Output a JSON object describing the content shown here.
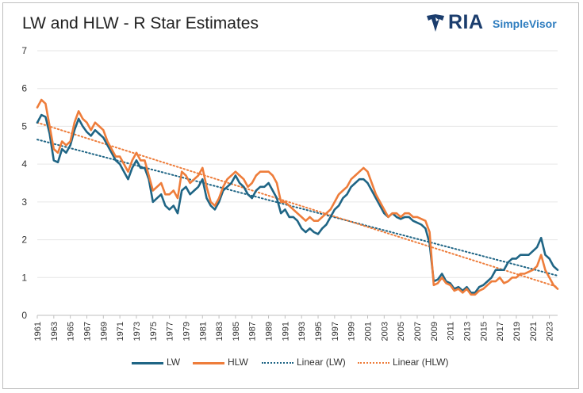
{
  "header": {
    "title": "LW and HLW - R Star Estimates",
    "logo_main": "RIA",
    "logo_sub": "SimpleVisor"
  },
  "colors": {
    "lw": "#1f6585",
    "hlw": "#ee7d3b",
    "linear_lw": "#1f6585",
    "linear_hlw": "#ee7d3b",
    "grid": "#e6e6e6",
    "logo_dark": "#1b3d6d",
    "logo_light": "#2e7dbf"
  },
  "legend": {
    "items": [
      {
        "label": "LW",
        "style": "solid",
        "color": "#1f6585"
      },
      {
        "label": "HLW",
        "style": "solid",
        "color": "#ee7d3b"
      },
      {
        "label": "Linear (LW)",
        "style": "dotted",
        "color": "#1f6585"
      },
      {
        "label": "Linear (HLW)",
        "style": "dotted",
        "color": "#ee7d3b"
      }
    ]
  },
  "chart_data": {
    "type": "line",
    "title": "LW and HLW - R Star Estimates",
    "xlabel": "",
    "ylabel": "",
    "xlim": [
      1961,
      2024
    ],
    "ylim": [
      0,
      7
    ],
    "yticks": [
      0,
      1,
      2,
      3,
      4,
      5,
      6,
      7
    ],
    "xticks": [
      "1961",
      "1963",
      "1965",
      "1967",
      "1969",
      "1971",
      "1973",
      "1975",
      "1977",
      "1979",
      "1981",
      "1983",
      "1985",
      "1987",
      "1989",
      "1991",
      "1993",
      "1995",
      "1997",
      "1999",
      "2001",
      "2003",
      "2005",
      "2007",
      "2009",
      "2011",
      "2013",
      "2015",
      "2017",
      "2019",
      "2021",
      "2023"
    ],
    "grid": "horizontal",
    "legend_position": "bottom",
    "series": [
      {
        "name": "LW",
        "x": [
          1961.0,
          1961.5,
          1962.0,
          1962.5,
          1963.0,
          1963.5,
          1964.0,
          1964.5,
          1965.0,
          1965.5,
          1966.0,
          1966.5,
          1967.0,
          1967.5,
          1968.0,
          1968.5,
          1969.0,
          1969.5,
          1970.0,
          1970.5,
          1971.0,
          1971.5,
          1972.0,
          1972.5,
          1973.0,
          1973.5,
          1974.0,
          1974.5,
          1975.0,
          1975.5,
          1976.0,
          1976.5,
          1977.0,
          1977.5,
          1978.0,
          1978.5,
          1979.0,
          1979.5,
          1980.0,
          1980.5,
          1981.0,
          1981.5,
          1982.0,
          1982.5,
          1983.0,
          1983.5,
          1984.0,
          1984.5,
          1985.0,
          1985.5,
          1986.0,
          1986.5,
          1987.0,
          1987.5,
          1988.0,
          1988.5,
          1989.0,
          1989.5,
          1990.0,
          1990.5,
          1991.0,
          1991.5,
          1992.0,
          1992.5,
          1993.0,
          1993.5,
          1994.0,
          1994.5,
          1995.0,
          1995.5,
          1996.0,
          1996.5,
          1997.0,
          1997.5,
          1998.0,
          1998.5,
          1999.0,
          1999.5,
          2000.0,
          2000.5,
          2001.0,
          2001.5,
          2002.0,
          2002.5,
          2003.0,
          2003.5,
          2004.0,
          2004.5,
          2005.0,
          2005.5,
          2006.0,
          2006.5,
          2007.0,
          2007.5,
          2008.0,
          2008.5,
          2009.0,
          2009.5,
          2010.0,
          2010.5,
          2011.0,
          2011.5,
          2012.0,
          2012.5,
          2013.0,
          2013.5,
          2014.0,
          2014.5,
          2015.0,
          2015.5,
          2016.0,
          2016.5,
          2017.0,
          2017.5,
          2018.0,
          2018.5,
          2019.0,
          2019.5,
          2020.0,
          2020.5,
          2021.0,
          2021.5,
          2022.0,
          2022.5,
          2023.0,
          2023.5,
          2024.0
        ],
        "values": [
          5.1,
          5.3,
          5.25,
          4.8,
          4.1,
          4.05,
          4.4,
          4.3,
          4.5,
          4.9,
          5.2,
          5.0,
          4.85,
          4.75,
          4.9,
          4.8,
          4.7,
          4.5,
          4.3,
          4.1,
          4.0,
          3.8,
          3.6,
          3.9,
          4.1,
          3.9,
          3.9,
          3.6,
          3.0,
          3.1,
          3.2,
          2.9,
          2.8,
          2.9,
          2.7,
          3.3,
          3.4,
          3.2,
          3.3,
          3.4,
          3.6,
          3.1,
          2.9,
          2.8,
          3.0,
          3.3,
          3.4,
          3.5,
          3.7,
          3.5,
          3.4,
          3.2,
          3.1,
          3.3,
          3.4,
          3.4,
          3.5,
          3.3,
          3.1,
          2.7,
          2.8,
          2.6,
          2.6,
          2.5,
          2.3,
          2.2,
          2.3,
          2.2,
          2.15,
          2.3,
          2.4,
          2.6,
          2.8,
          2.9,
          3.1,
          3.2,
          3.4,
          3.5,
          3.6,
          3.6,
          3.5,
          3.3,
          3.1,
          2.9,
          2.7,
          2.6,
          2.7,
          2.6,
          2.55,
          2.6,
          2.6,
          2.5,
          2.45,
          2.4,
          2.3,
          1.9,
          0.9,
          0.95,
          1.1,
          0.9,
          0.85,
          0.7,
          0.75,
          0.65,
          0.75,
          0.6,
          0.6,
          0.75,
          0.8,
          0.9,
          1.0,
          1.2,
          1.2,
          1.2,
          1.4,
          1.5,
          1.5,
          1.6,
          1.6,
          1.6,
          1.7,
          1.8,
          2.05,
          1.6,
          1.5,
          1.3,
          1.2
        ]
      },
      {
        "name": "HLW",
        "x": [
          1961.0,
          1961.5,
          1962.0,
          1962.5,
          1963.0,
          1963.5,
          1964.0,
          1964.5,
          1965.0,
          1965.5,
          1966.0,
          1966.5,
          1967.0,
          1967.5,
          1968.0,
          1968.5,
          1969.0,
          1969.5,
          1970.0,
          1970.5,
          1971.0,
          1971.5,
          1972.0,
          1972.5,
          1973.0,
          1973.5,
          1974.0,
          1974.5,
          1975.0,
          1975.5,
          1976.0,
          1976.5,
          1977.0,
          1977.5,
          1978.0,
          1978.5,
          1979.0,
          1979.5,
          1980.0,
          1980.5,
          1981.0,
          1981.5,
          1982.0,
          1982.5,
          1983.0,
          1983.5,
          1984.0,
          1984.5,
          1985.0,
          1985.5,
          1986.0,
          1986.5,
          1987.0,
          1987.5,
          1988.0,
          1988.5,
          1989.0,
          1989.5,
          1990.0,
          1990.5,
          1991.0,
          1991.5,
          1992.0,
          1992.5,
          1993.0,
          1993.5,
          1994.0,
          1994.5,
          1995.0,
          1995.5,
          1996.0,
          1996.5,
          1997.0,
          1997.5,
          1998.0,
          1998.5,
          1999.0,
          1999.5,
          2000.0,
          2000.5,
          2001.0,
          2001.5,
          2002.0,
          2002.5,
          2003.0,
          2003.5,
          2004.0,
          2004.5,
          2005.0,
          2005.5,
          2006.0,
          2006.5,
          2007.0,
          2007.5,
          2008.0,
          2008.5,
          2009.0,
          2009.5,
          2010.0,
          2010.5,
          2011.0,
          2011.5,
          2012.0,
          2012.5,
          2013.0,
          2013.5,
          2014.0,
          2014.5,
          2015.0,
          2015.5,
          2016.0,
          2016.5,
          2017.0,
          2017.5,
          2018.0,
          2018.5,
          2019.0,
          2019.5,
          2020.0,
          2020.5,
          2021.0,
          2021.5,
          2022.0,
          2022.5,
          2023.0,
          2023.5,
          2024.0
        ],
        "values": [
          5.5,
          5.7,
          5.6,
          5.0,
          4.4,
          4.3,
          4.6,
          4.5,
          4.6,
          5.1,
          5.4,
          5.2,
          5.1,
          4.9,
          5.1,
          5.0,
          4.9,
          4.6,
          4.4,
          4.2,
          4.2,
          4.0,
          3.8,
          4.1,
          4.3,
          4.1,
          4.1,
          3.7,
          3.3,
          3.4,
          3.5,
          3.2,
          3.2,
          3.3,
          3.1,
          3.8,
          3.7,
          3.5,
          3.6,
          3.7,
          3.9,
          3.4,
          3.0,
          2.9,
          3.1,
          3.4,
          3.6,
          3.7,
          3.8,
          3.7,
          3.6,
          3.4,
          3.5,
          3.7,
          3.8,
          3.8,
          3.8,
          3.7,
          3.5,
          3.0,
          3.0,
          2.9,
          2.8,
          2.7,
          2.6,
          2.5,
          2.6,
          2.5,
          2.5,
          2.6,
          2.7,
          2.8,
          3.0,
          3.2,
          3.3,
          3.4,
          3.6,
          3.7,
          3.8,
          3.9,
          3.8,
          3.5,
          3.2,
          3.0,
          2.8,
          2.6,
          2.7,
          2.7,
          2.6,
          2.7,
          2.7,
          2.6,
          2.6,
          2.55,
          2.5,
          2.2,
          0.8,
          0.85,
          1.0,
          0.85,
          0.8,
          0.65,
          0.7,
          0.6,
          0.7,
          0.55,
          0.55,
          0.65,
          0.7,
          0.8,
          0.9,
          0.9,
          1.0,
          0.85,
          0.9,
          1.0,
          1.0,
          1.1,
          1.1,
          1.15,
          1.2,
          1.3,
          1.6,
          1.2,
          1.0,
          0.8,
          0.7
        ]
      },
      {
        "name": "Linear (LW)",
        "type": "trendline",
        "x": [
          1961,
          2024
        ],
        "values": [
          4.65,
          1.05
        ]
      },
      {
        "name": "Linear (HLW)",
        "type": "trendline",
        "x": [
          1961,
          2024
        ],
        "values": [
          5.1,
          0.75
        ]
      }
    ]
  }
}
